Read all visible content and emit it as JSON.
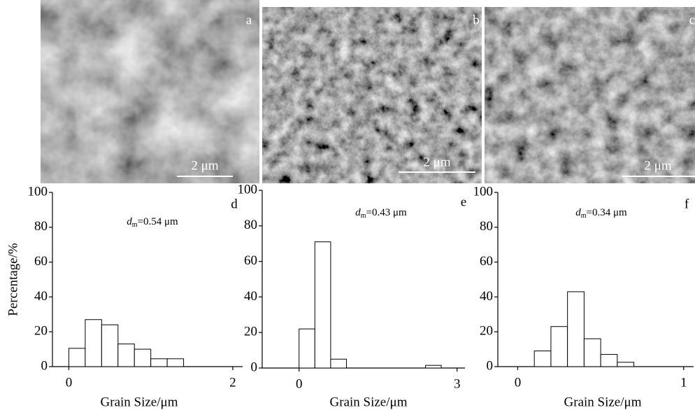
{
  "panels": [
    {
      "label": "a",
      "scale_bar": "2 μm"
    },
    {
      "label": "b",
      "scale_bar": "2 μm"
    },
    {
      "label": "c",
      "scale_bar": "2 μm"
    }
  ],
  "chart_data": [
    {
      "type": "histogram",
      "panel_label": "d",
      "annotation": {
        "symbol": "d",
        "subscript": "m",
        "text": "=0.54 μm"
      },
      "bins": [
        0,
        0.2,
        0.4,
        0.6,
        0.8,
        1.0,
        1.2,
        1.4
      ],
      "counts": [
        10.5,
        27,
        24,
        13,
        10,
        4.5,
        4.5
      ],
      "xlim": [
        -0.2,
        2.12
      ],
      "xticks": [
        0,
        2
      ],
      "ylim": [
        0,
        100
      ],
      "yticks": [
        0,
        20,
        40,
        60,
        80,
        100
      ],
      "x_label": "Grain Size/μm",
      "y_label": "Percentage/%",
      "color": "#ffffff"
    },
    {
      "type": "histogram",
      "panel_label": "e",
      "annotation": {
        "symbol": "d",
        "subscript": "m",
        "text": "=0.43 μm"
      },
      "bins": [
        0,
        0.3,
        0.6,
        0.9,
        1.2,
        1.5,
        1.8,
        2.1,
        2.4,
        2.7
      ],
      "counts": [
        22,
        71,
        5,
        0,
        0,
        0,
        0,
        0,
        1.5
      ],
      "xlim": [
        -0.7,
        3.15
      ],
      "xticks": [
        0,
        3
      ],
      "ylim": [
        0,
        100
      ],
      "yticks": [
        0,
        20,
        40,
        60,
        80,
        100
      ],
      "x_label": "Grain Size/μm",
      "color": "#ffffff"
    },
    {
      "type": "histogram",
      "panel_label": "f",
      "annotation": {
        "symbol": "d",
        "subscript": "m",
        "text": "=0.34 μm"
      },
      "bins": [
        0.1,
        0.2,
        0.3,
        0.4,
        0.5,
        0.6,
        0.7
      ],
      "counts": [
        9,
        23,
        43,
        16,
        7,
        2.5
      ],
      "xlim": [
        -0.12,
        1.06
      ],
      "xticks": [
        0,
        1
      ],
      "ylim": [
        0,
        100
      ],
      "yticks": [
        0,
        20,
        40,
        60,
        80,
        100
      ],
      "x_label": "Grain Size/μm",
      "color": "#ffffff"
    }
  ]
}
